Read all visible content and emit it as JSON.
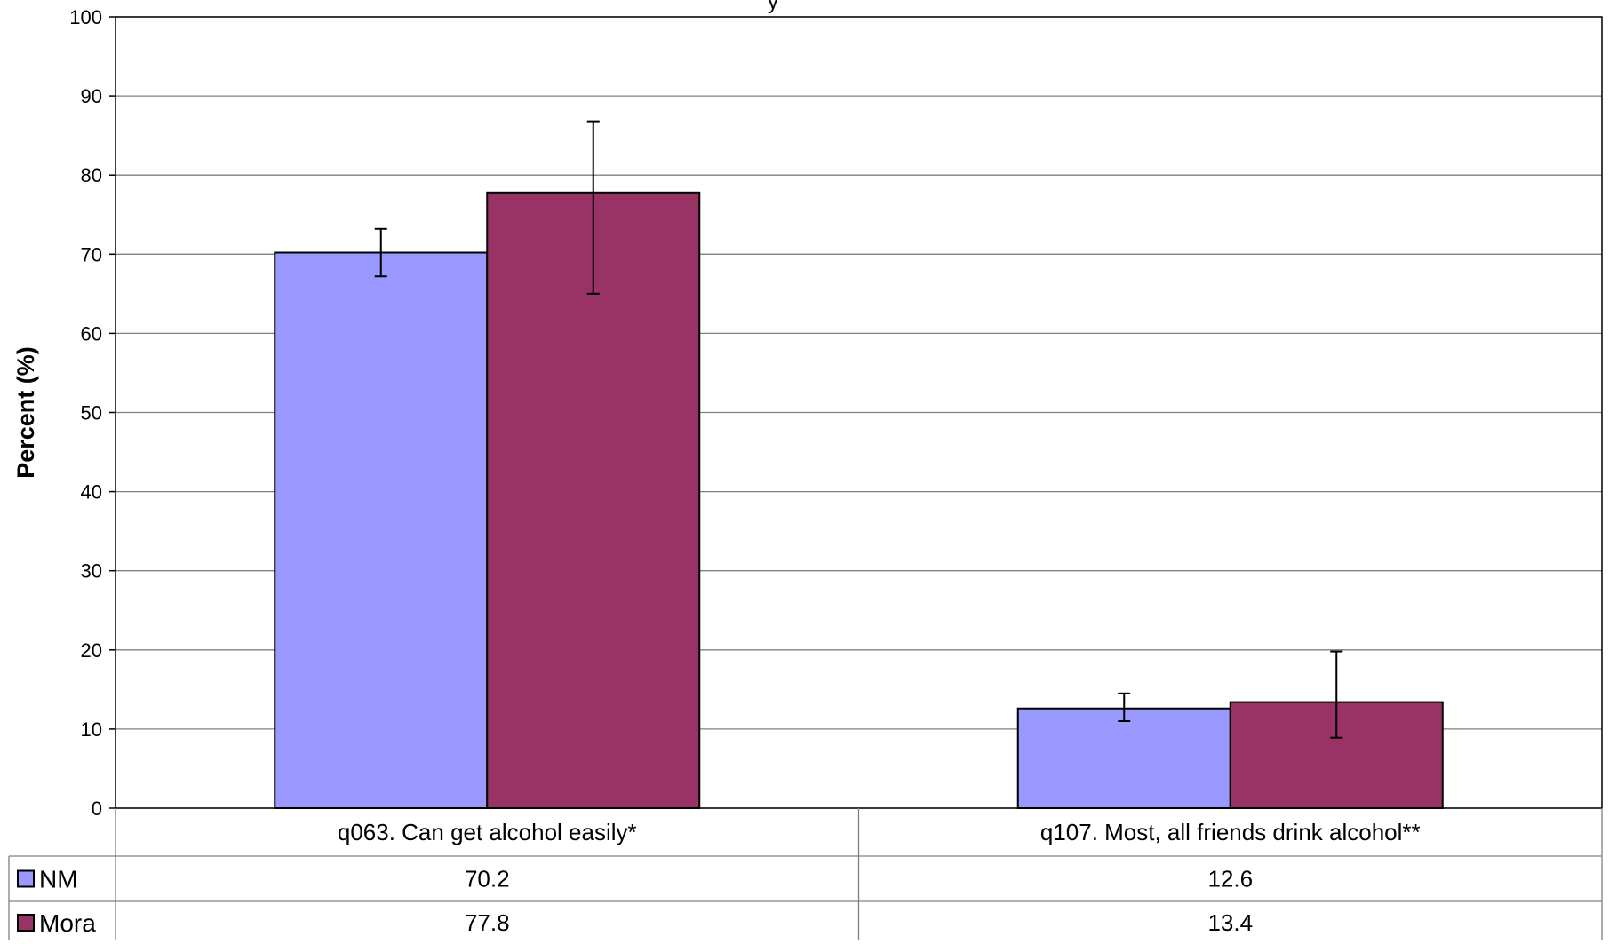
{
  "chart_data": {
    "type": "bar",
    "title_fragment": "y",
    "ylabel": "Percent (%)",
    "ylim": [
      0,
      100
    ],
    "yticks": [
      0,
      10,
      20,
      30,
      40,
      50,
      60,
      70,
      80,
      90,
      100
    ],
    "grid": true,
    "categories": [
      "q063. Can get alcohol easily*",
      "q107. Most, all friends drink alcohol**"
    ],
    "series": [
      {
        "name": "NM",
        "color": "#9999ff",
        "values": [
          70.2,
          12.6
        ],
        "value_labels": [
          "70.2",
          "12.6"
        ],
        "error_low": [
          67.2,
          11.0
        ],
        "error_high": [
          73.2,
          14.5
        ]
      },
      {
        "name": "Mora",
        "color": "#993366",
        "values": [
          77.8,
          13.4
        ],
        "value_labels": [
          "77.8",
          "13.4"
        ],
        "error_low": [
          65.0,
          8.9
        ],
        "error_high": [
          86.8,
          19.8
        ]
      }
    ],
    "legend_placement": "data-table-left"
  }
}
